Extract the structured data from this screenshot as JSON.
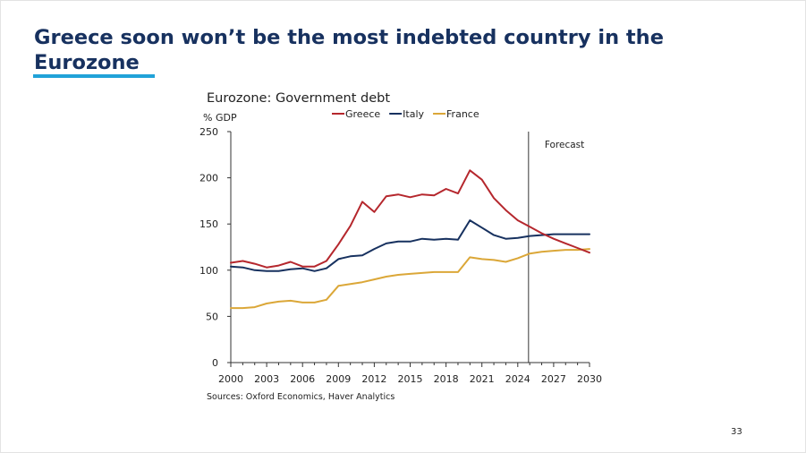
{
  "slide": {
    "title": "Greece soon won’t be the most indebted country in the Eurozone",
    "source": "Sources: Oxford Economics, Haver Analytics",
    "page_number": "33",
    "accent_color": "#20a2d8",
    "title_color": "#17315f"
  },
  "chart_data": {
    "type": "line",
    "title": "Eurozone: Government debt",
    "ylabel": "% GDP",
    "xlabel": "",
    "ylim": [
      0,
      250
    ],
    "xlim": [
      2000,
      2030
    ],
    "yticks": [
      0,
      50,
      100,
      150,
      200,
      250
    ],
    "xticks": [
      2000,
      2003,
      2006,
      2009,
      2012,
      2015,
      2018,
      2021,
      2024,
      2027,
      2030
    ],
    "grid": false,
    "legend_position": "top",
    "annotation": {
      "label": "Forecast",
      "x": 2024.9
    },
    "x": [
      2000,
      2001,
      2002,
      2003,
      2004,
      2005,
      2006,
      2007,
      2008,
      2009,
      2010,
      2011,
      2012,
      2013,
      2014,
      2015,
      2016,
      2017,
      2018,
      2019,
      2020,
      2021,
      2022,
      2023,
      2024,
      2025,
      2026,
      2027,
      2028,
      2029,
      2030
    ],
    "series": [
      {
        "name": "Greece",
        "color": "#b5272d",
        "values": [
          108,
          110,
          107,
          103,
          105,
          109,
          104,
          104,
          110,
          128,
          148,
          174,
          163,
          180,
          182,
          179,
          182,
          181,
          188,
          183,
          208,
          198,
          178,
          165,
          154,
          147,
          140,
          134,
          129,
          124,
          119
        ]
      },
      {
        "name": "Italy",
        "color": "#17315f",
        "values": [
          104,
          103,
          100,
          99,
          99,
          101,
          102,
          99,
          102,
          112,
          115,
          116,
          123,
          129,
          131,
          131,
          134,
          133,
          134,
          133,
          154,
          146,
          138,
          134,
          135,
          137,
          138,
          139,
          139,
          139,
          139
        ]
      },
      {
        "name": "France",
        "color": "#dba738",
        "values": [
          59,
          59,
          60,
          64,
          66,
          67,
          65,
          65,
          68,
          83,
          85,
          87,
          90,
          93,
          95,
          96,
          97,
          98,
          98,
          98,
          114,
          112,
          111,
          109,
          113,
          118,
          120,
          121,
          122,
          122,
          123
        ]
      }
    ]
  }
}
